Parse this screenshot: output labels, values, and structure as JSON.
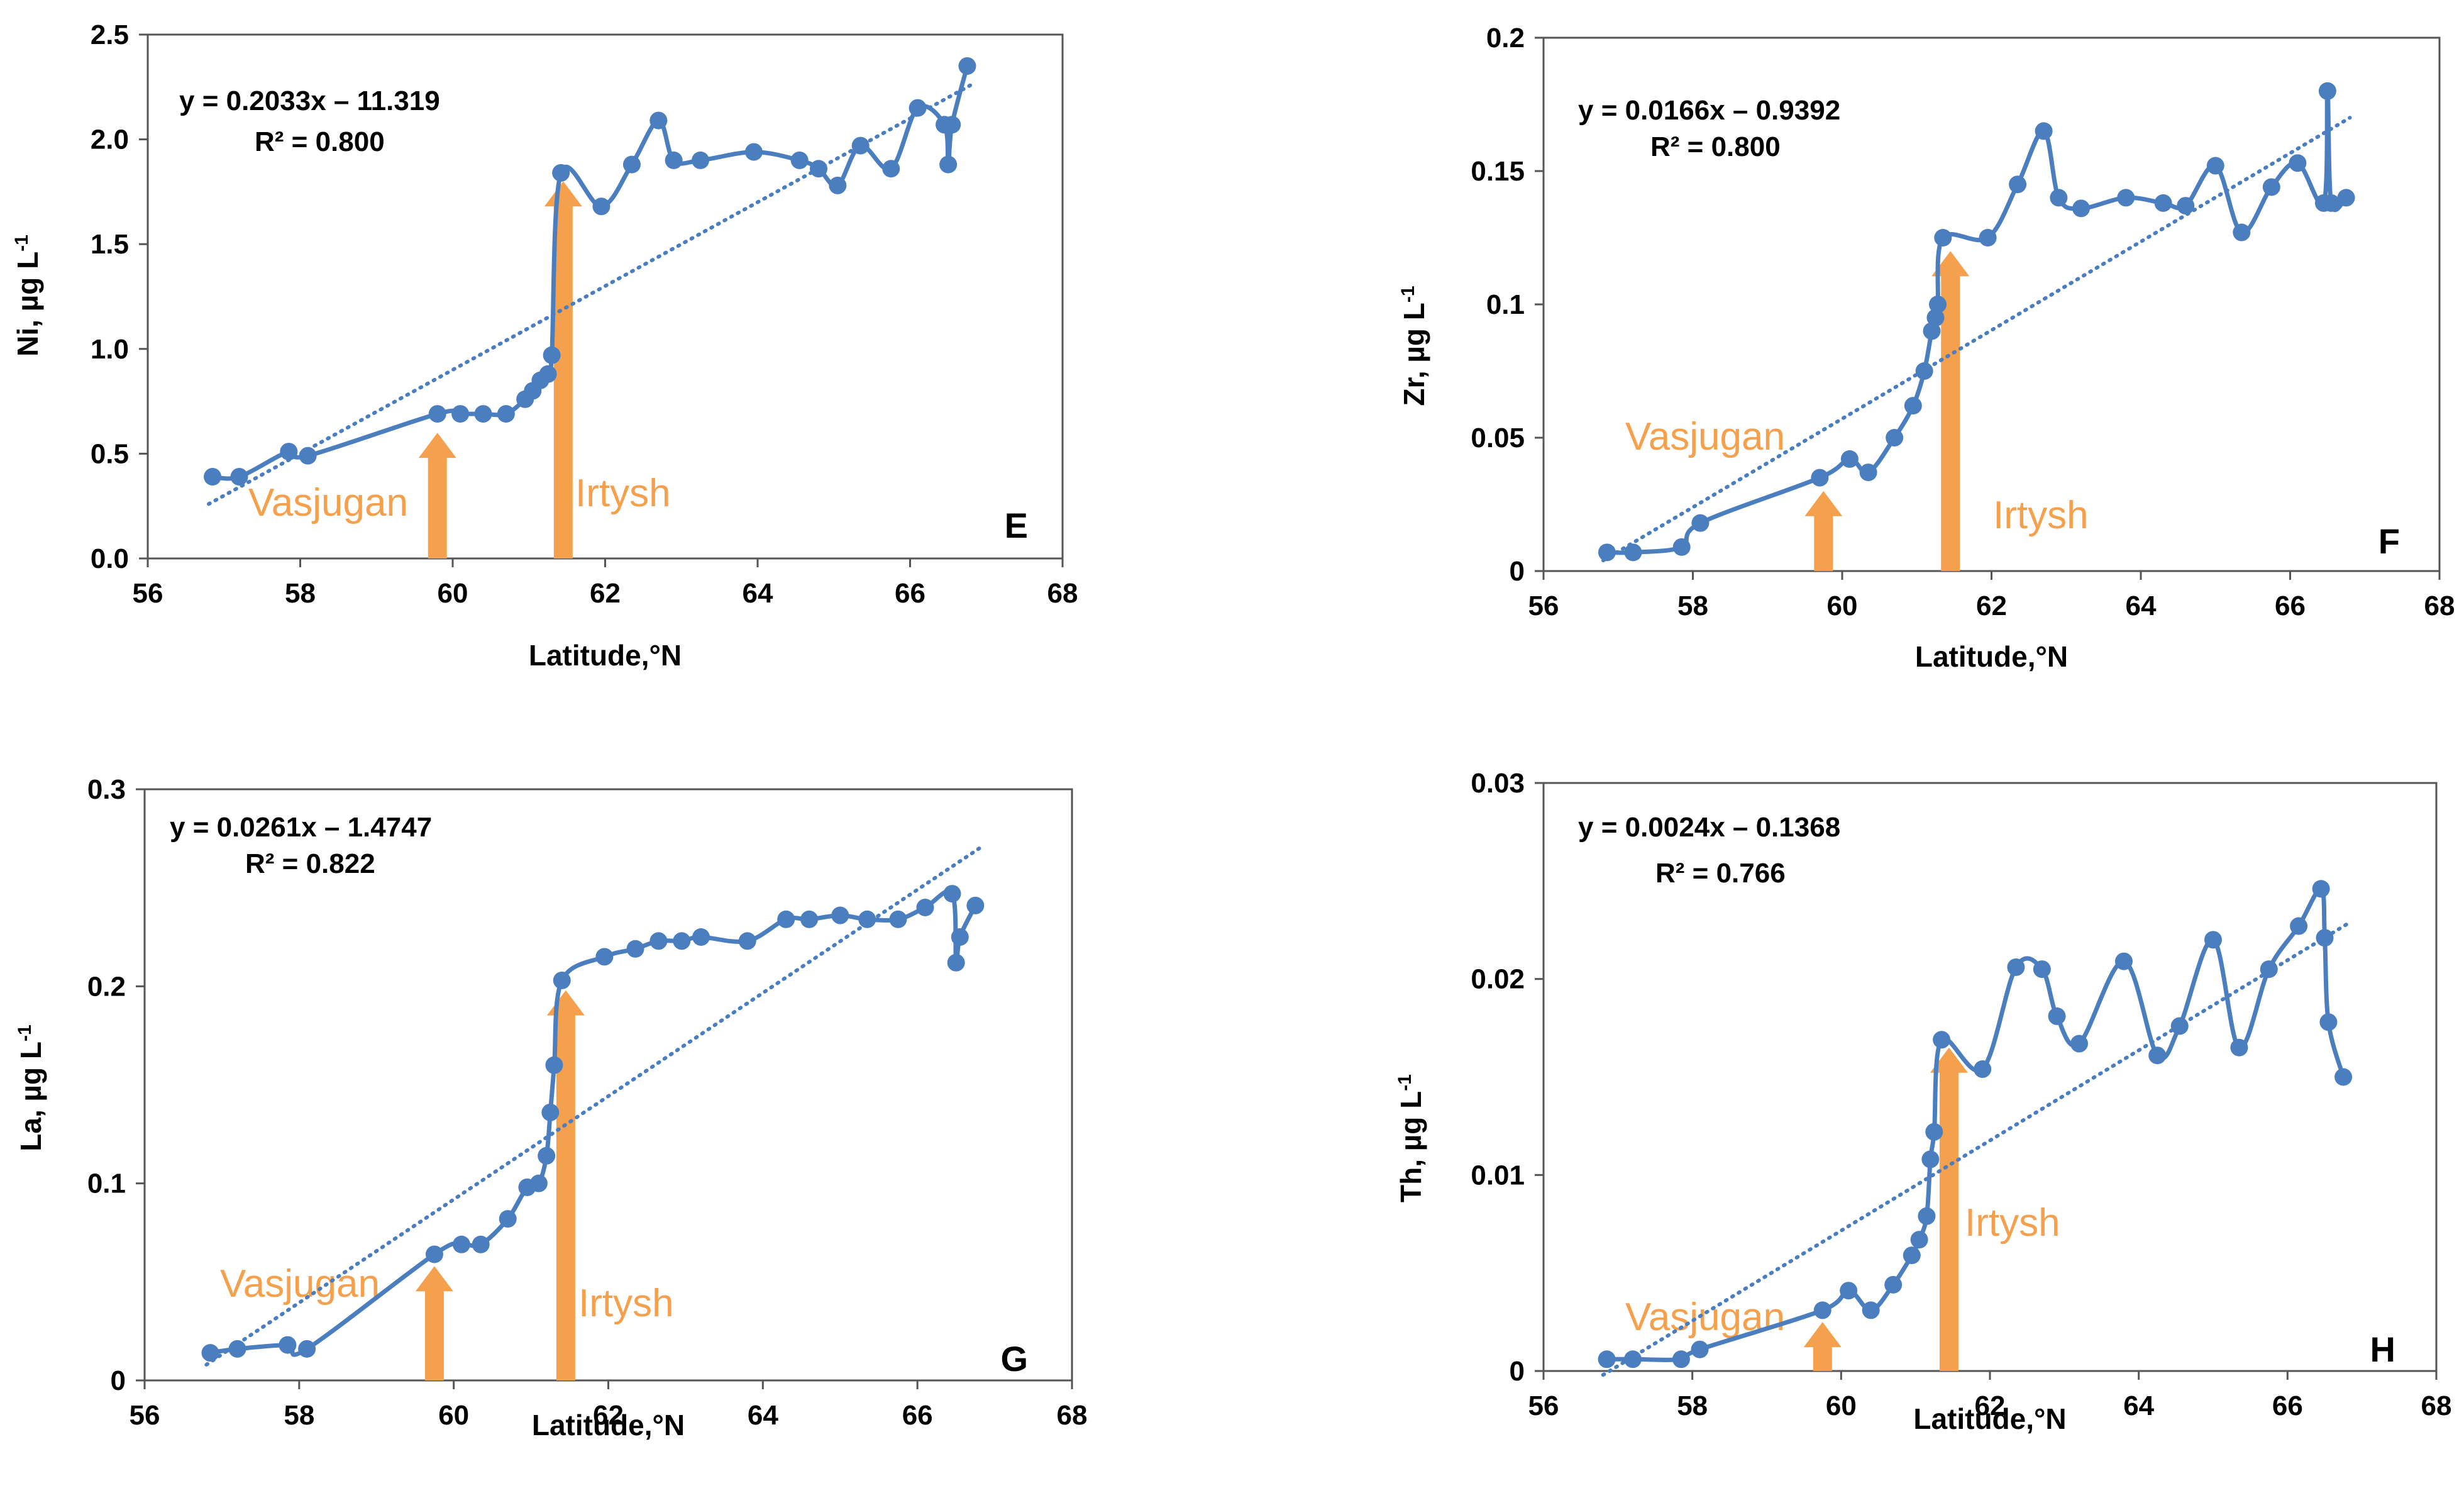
{
  "colors": {
    "series": "#4a7ebf",
    "trend": "#4a7ebf",
    "arrow": "#f4a04d",
    "axis": "#555555",
    "text": "#000000"
  },
  "chart_data": [
    {
      "type": "scatter",
      "panel": "E",
      "ylabel_main": "Ni, µg L",
      "ylabel_sup": "-1",
      "xlabel": "Latitude,°N",
      "xlim": [
        56,
        68
      ],
      "ylim": [
        0,
        2.5
      ],
      "xticks": [
        56,
        58,
        60,
        62,
        64,
        66,
        68
      ],
      "yticks": [
        0,
        0.5,
        1,
        1.5,
        2,
        2.5
      ],
      "ytick_labels": [
        "0.0",
        "0.5",
        "1.0",
        "1.5",
        "2.0",
        "2.5"
      ],
      "equation": "y = 0.2033x – 11.319",
      "r_squared": "R² = 0.800",
      "trendline": {
        "x": [
          56.8,
          66.8
        ],
        "y": [
          0.26,
          2.26
        ]
      },
      "series": [
        {
          "name": "Ni",
          "x": [
            56.85,
            57.2,
            57.85,
            58.1,
            59.8,
            60.1,
            60.4,
            60.7,
            60.95,
            61.05,
            61.15,
            61.25,
            61.3,
            61.42,
            61.95,
            62.35,
            62.7,
            62.9,
            63.25,
            63.95,
            64.55,
            64.8,
            65.05,
            65.35,
            65.75,
            66.1,
            66.45,
            66.5,
            66.55,
            66.75
          ],
          "y": [
            0.39,
            0.39,
            0.51,
            0.49,
            0.69,
            0.69,
            0.69,
            0.69,
            0.76,
            0.8,
            0.85,
            0.88,
            0.97,
            1.84,
            1.68,
            1.88,
            2.09,
            1.9,
            1.9,
            1.94,
            1.9,
            1.86,
            1.78,
            1.97,
            1.86,
            2.15,
            2.07,
            1.88,
            2.07,
            2.35
          ]
        }
      ],
      "annotations": [
        {
          "label": "Vasjugan",
          "x": 59.8,
          "y_base": 0,
          "y_tip": 0.6
        },
        {
          "label": "Irtysh",
          "x": 61.45,
          "y_base": 0,
          "y_tip": 1.8
        }
      ]
    },
    {
      "type": "scatter",
      "panel": "F",
      "ylabel_main": "Zr, µg L",
      "ylabel_sup": "-1",
      "xlabel": "Latitude,°N",
      "xlim": [
        56,
        68
      ],
      "ylim": [
        0,
        0.2
      ],
      "xticks": [
        56,
        58,
        60,
        62,
        64,
        66,
        68
      ],
      "yticks": [
        0,
        0.05,
        0.1,
        0.15,
        0.2
      ],
      "ytick_labels": [
        "0",
        "0.05",
        "0.1",
        "0.15",
        "0.2"
      ],
      "equation": "y = 0.0166x – 0.9392",
      "r_squared": "R² = 0.800",
      "trendline": {
        "x": [
          56.8,
          66.8
        ],
        "y": [
          0.004,
          0.17
        ]
      },
      "series": [
        {
          "name": "Zr",
          "x": [
            56.85,
            57.2,
            57.85,
            58.1,
            59.7,
            60.1,
            60.35,
            60.7,
            60.95,
            61.1,
            61.2,
            61.25,
            61.28,
            61.35,
            61.95,
            62.35,
            62.7,
            62.9,
            63.2,
            63.8,
            64.3,
            64.6,
            65.0,
            65.35,
            65.75,
            66.1,
            66.45,
            66.5,
            66.55,
            66.75
          ],
          "y": [
            0.007,
            0.007,
            0.009,
            0.018,
            0.035,
            0.042,
            0.037,
            0.05,
            0.062,
            0.075,
            0.09,
            0.095,
            0.1,
            0.125,
            0.125,
            0.145,
            0.165,
            0.14,
            0.136,
            0.14,
            0.138,
            0.137,
            0.152,
            0.127,
            0.144,
            0.153,
            0.138,
            0.18,
            0.138,
            0.14
          ]
        }
      ],
      "annotations": [
        {
          "label": "Vasjugan",
          "x": 59.75,
          "y_base": 0,
          "y_tip": 0.03
        },
        {
          "label": "Irtysh",
          "x": 61.45,
          "y_base": 0,
          "y_tip": 0.12
        }
      ]
    },
    {
      "type": "scatter",
      "panel": "G",
      "ylabel_main": "La, µg  L",
      "ylabel_sup": "-1",
      "xlabel": "Latitude,°N",
      "xlim": [
        56,
        68
      ],
      "ylim": [
        0,
        0.3
      ],
      "xticks": [
        56,
        58,
        60,
        62,
        64,
        66,
        68
      ],
      "yticks": [
        0,
        0.1,
        0.2,
        0.3
      ],
      "ytick_labels": [
        "0",
        "0.1",
        "0.2",
        "0.3"
      ],
      "equation": "y = 0.0261x – 1.4747",
      "r_squared": "R² = 0.822",
      "trendline": {
        "x": [
          56.8,
          66.8
        ],
        "y": [
          0.008,
          0.27
        ]
      },
      "series": [
        {
          "name": "La",
          "x": [
            56.85,
            57.2,
            57.85,
            58.1,
            59.75,
            60.1,
            60.35,
            60.7,
            60.95,
            61.1,
            61.2,
            61.25,
            61.3,
            61.4,
            61.95,
            62.35,
            62.65,
            62.95,
            63.2,
            63.8,
            64.3,
            64.6,
            65.0,
            65.35,
            65.75,
            66.1,
            66.45,
            66.5,
            66.55,
            66.75
          ],
          "y": [
            0.014,
            0.016,
            0.018,
            0.016,
            0.064,
            0.069,
            0.069,
            0.082,
            0.098,
            0.1,
            0.114,
            0.136,
            0.16,
            0.203,
            0.215,
            0.219,
            0.223,
            0.223,
            0.225,
            0.223,
            0.234,
            0.234,
            0.236,
            0.234,
            0.234,
            0.24,
            0.247,
            0.212,
            0.225,
            0.241
          ]
        }
      ],
      "annotations": [
        {
          "label": "Vasjugan",
          "x": 59.75,
          "y_base": 0,
          "y_tip": 0.058
        },
        {
          "label": "Irtysh",
          "x": 61.45,
          "y_base": 0,
          "y_tip": 0.198
        }
      ]
    },
    {
      "type": "scatter",
      "panel": "H",
      "ylabel_main": "Th, µg  L",
      "ylabel_sup": "-1",
      "xlabel": "Latitude,°N",
      "xlim": [
        56,
        68
      ],
      "ylim": [
        0,
        0.03
      ],
      "xticks": [
        56,
        58,
        60,
        62,
        64,
        66,
        68
      ],
      "yticks": [
        0,
        0.01,
        0.02,
        0.03
      ],
      "ytick_labels": [
        "0",
        "0.01",
        "0.02",
        "0.03"
      ],
      "equation": "y = 0.0024x – 0.1368",
      "r_squared": "R² = 0.766",
      "trendline": {
        "x": [
          56.8,
          66.8
        ],
        "y": [
          -0.0002,
          0.0228
        ]
      },
      "series": [
        {
          "name": "Th",
          "x": [
            56.85,
            57.2,
            57.85,
            58.1,
            59.75,
            60.1,
            60.4,
            60.7,
            60.95,
            61.05,
            61.15,
            61.2,
            61.25,
            61.35,
            61.9,
            62.35,
            62.7,
            62.9,
            63.2,
            63.8,
            64.25,
            64.55,
            65.0,
            65.35,
            65.75,
            66.15,
            66.45,
            66.5,
            66.55,
            66.75
          ],
          "y": [
            0.0006,
            0.0006,
            0.0006,
            0.0011,
            0.0031,
            0.0041,
            0.0031,
            0.0044,
            0.0059,
            0.0067,
            0.0079,
            0.0108,
            0.0122,
            0.0169,
            0.0154,
            0.0206,
            0.0205,
            0.0181,
            0.0167,
            0.0209,
            0.0161,
            0.0176,
            0.022,
            0.0165,
            0.0205,
            0.0227,
            0.0246,
            0.0221,
            0.0178,
            0.015
          ]
        }
      ],
      "annotations": [
        {
          "label": "Vasjugan",
          "x": 59.75,
          "y_base": 0,
          "y_tip": 0.0025
        },
        {
          "label": "Irtysh",
          "x": 61.45,
          "y_base": 0,
          "y_tip": 0.0165
        }
      ]
    }
  ]
}
